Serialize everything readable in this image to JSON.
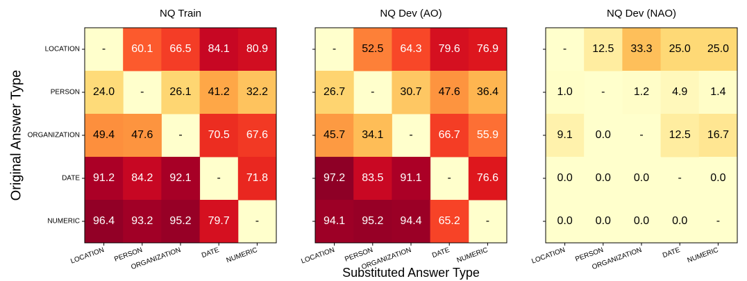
{
  "chart_data": [
    {
      "type": "heatmap",
      "title": "NQ Train",
      "ylabel": "Original Answer Type",
      "colormap": "YlOrRd",
      "clim": [
        0,
        100
      ],
      "x_categories": [
        "LOCATION",
        "PERSON",
        "ORGANIZATION",
        "DATE",
        "NUMERIC"
      ],
      "y_categories": [
        "LOCATION",
        "PERSON",
        "ORGANIZATION",
        "DATE",
        "NUMERIC"
      ],
      "values": [
        [
          null,
          60.1,
          66.5,
          84.1,
          80.9
        ],
        [
          24.0,
          null,
          26.1,
          41.2,
          32.2
        ],
        [
          49.4,
          47.6,
          null,
          70.5,
          67.6
        ],
        [
          91.2,
          84.2,
          92.1,
          null,
          71.8
        ],
        [
          96.4,
          93.2,
          95.2,
          79.7,
          null
        ]
      ],
      "value_labels": [
        [
          "-",
          "60.1",
          "66.5",
          "84.1",
          "80.9"
        ],
        [
          "24.0",
          "-",
          "26.1",
          "41.2",
          "32.2"
        ],
        [
          "49.4",
          "47.6",
          "-",
          "70.5",
          "67.6"
        ],
        [
          "91.2",
          "84.2",
          "92.1",
          "-",
          "71.8"
        ],
        [
          "96.4",
          "93.2",
          "95.2",
          "79.7",
          "-"
        ]
      ]
    },
    {
      "type": "heatmap",
      "title": "NQ Dev (AO)",
      "xlabel": "Substituted Answer Type",
      "colormap": "YlOrRd",
      "clim": [
        0,
        100
      ],
      "x_categories": [
        "LOCATION",
        "PERSON",
        "ORGANIZATION",
        "DATE",
        "NUMERIC"
      ],
      "values": [
        [
          null,
          52.5,
          64.3,
          79.6,
          76.9
        ],
        [
          26.7,
          null,
          30.7,
          47.6,
          36.4
        ],
        [
          45.7,
          34.1,
          null,
          66.7,
          55.9
        ],
        [
          97.2,
          83.5,
          91.1,
          null,
          76.6
        ],
        [
          94.1,
          95.2,
          94.4,
          65.2,
          null
        ]
      ],
      "value_labels": [
        [
          "-",
          "52.5",
          "64.3",
          "79.6",
          "76.9"
        ],
        [
          "26.7",
          "-",
          "30.7",
          "47.6",
          "36.4"
        ],
        [
          "45.7",
          "34.1",
          "-",
          "66.7",
          "55.9"
        ],
        [
          "97.2",
          "83.5",
          "91.1",
          "-",
          "76.6"
        ],
        [
          "94.1",
          "95.2",
          "94.4",
          "65.2",
          "-"
        ]
      ]
    },
    {
      "type": "heatmap",
      "title": "NQ Dev (NAO)",
      "colormap": "YlOrRd",
      "clim": [
        0,
        100
      ],
      "x_categories": [
        "LOCATION",
        "PERSON",
        "ORGANIZATION",
        "DATE",
        "NUMERIC"
      ],
      "values": [
        [
          null,
          12.5,
          33.3,
          25.0,
          25.0
        ],
        [
          1.0,
          null,
          1.2,
          4.9,
          1.4
        ],
        [
          9.1,
          0.0,
          null,
          12.5,
          16.7
        ],
        [
          0.0,
          0.0,
          0.0,
          null,
          0.0
        ],
        [
          0.0,
          0.0,
          0.0,
          0.0,
          null
        ]
      ],
      "value_labels": [
        [
          "-",
          "12.5",
          "33.3",
          "25.0",
          "25.0"
        ],
        [
          "1.0",
          "-",
          "1.2",
          "4.9",
          "1.4"
        ],
        [
          "9.1",
          "0.0",
          "-",
          "12.5",
          "16.7"
        ],
        [
          "0.0",
          "0.0",
          "0.0",
          "-",
          "0.0"
        ],
        [
          "0.0",
          "0.0",
          "0.0",
          "0.0",
          "-"
        ]
      ]
    }
  ]
}
